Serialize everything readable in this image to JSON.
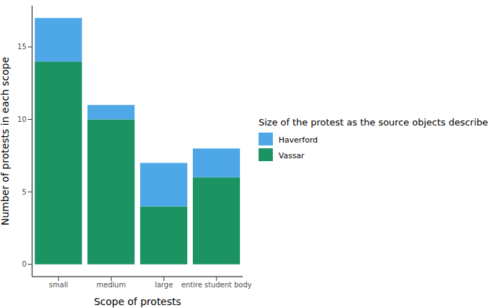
{
  "chart_data": {
    "type": "bar",
    "stacked": true,
    "categories": [
      "small",
      "medium",
      "large",
      "entire student body"
    ],
    "series": [
      {
        "name": "Haverford",
        "color": "#4ea7e6",
        "values": [
          3,
          1,
          3,
          2
        ]
      },
      {
        "name": "Vassar",
        "color": "#1b9362",
        "values": [
          14,
          10,
          4,
          6
        ]
      }
    ],
    "x_label": "Scope of protests",
    "y_label": "Number of protests in each scope",
    "legend_title": "Size of the protest as the source objects describe",
    "legend": "right",
    "ylim": [
      -0.85,
      17.85
    ],
    "yticks": [
      0,
      5,
      10,
      15
    ],
    "grid": false
  }
}
